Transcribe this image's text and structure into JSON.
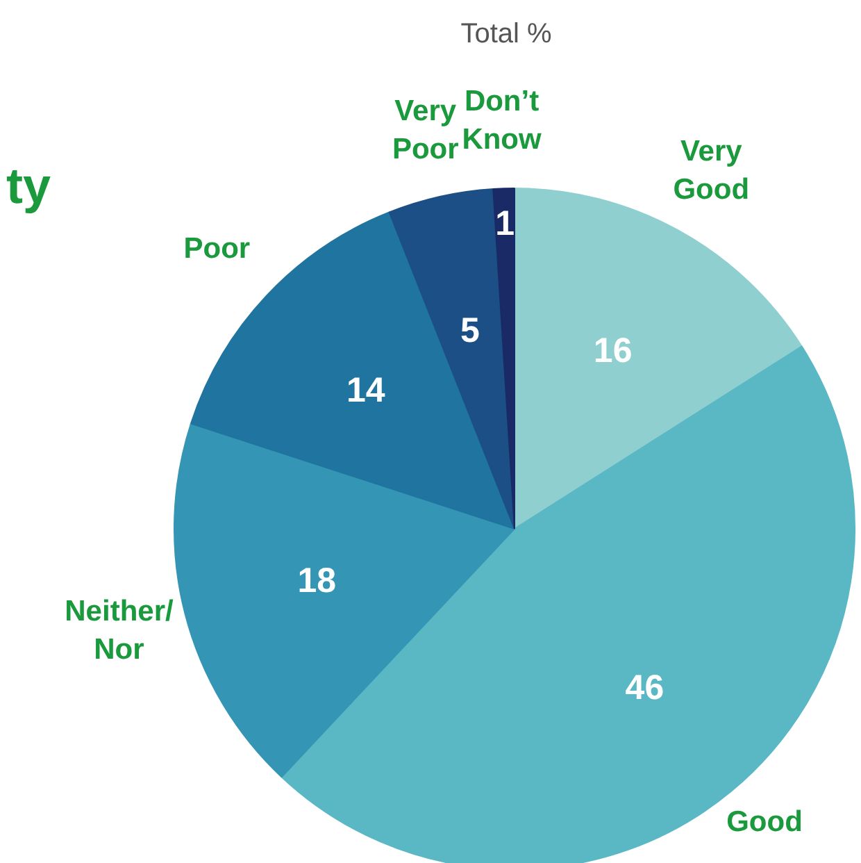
{
  "chart_data": {
    "type": "pie",
    "title": "Total %",
    "annotations": [
      "ty"
    ],
    "categories": [
      "Very Good",
      "Good",
      "Neither/Nor",
      "Poor",
      "Very Poor",
      "Don’t Know"
    ],
    "values": [
      16,
      46,
      18,
      14,
      5,
      1
    ],
    "colors": [
      "#90cfd0",
      "#5ab8c5",
      "#3496b4",
      "#1f74a0",
      "#1c4f86",
      "#1a2a66"
    ],
    "data_labels": true
  }
}
